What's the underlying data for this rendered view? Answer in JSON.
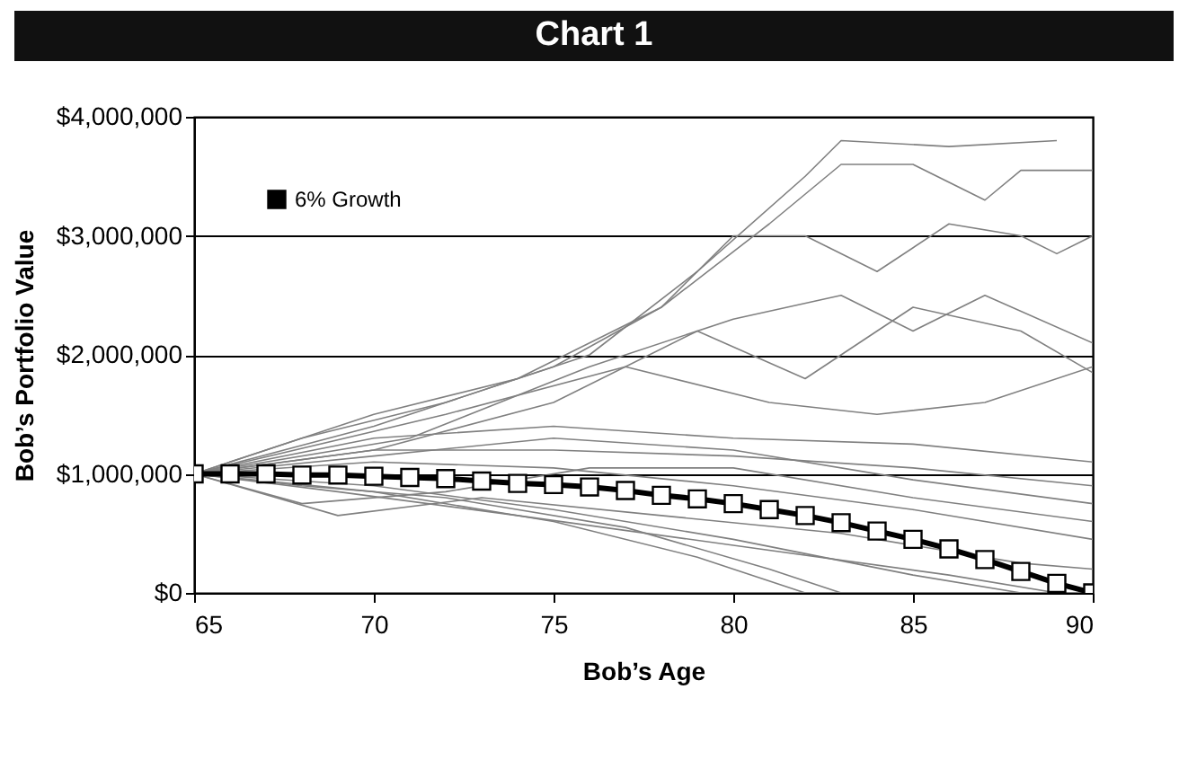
{
  "chart_data": {
    "type": "line",
    "title": "Chart 1",
    "xlabel": "Bob’s Age",
    "ylabel": "Bob’s Portfolio Value",
    "x": [
      65,
      66,
      67,
      68,
      69,
      70,
      71,
      72,
      73,
      74,
      75,
      76,
      77,
      78,
      79,
      80,
      81,
      82,
      83,
      84,
      85,
      86,
      87,
      88,
      89,
      90
    ],
    "xlim": [
      65,
      90
    ],
    "xticks": [
      65,
      70,
      75,
      80,
      85,
      90
    ],
    "ylim": [
      0,
      4000000
    ],
    "yticks": [
      {
        "value": 0,
        "label": "$0"
      },
      {
        "value": 1000000,
        "label": "$1,000,000"
      },
      {
        "value": 2000000,
        "label": "$2,000,000"
      },
      {
        "value": 3000000,
        "label": "$3,000,000"
      },
      {
        "value": 4000000,
        "label": "$4,000,000"
      }
    ],
    "grid": "y",
    "legend": "top left",
    "marker": "square",
    "series": [
      {
        "name": "6% Growth",
        "color": "#000000",
        "values": [
          1000000,
          1000000,
          1000000,
          990000,
          990000,
          980000,
          970000,
          960000,
          940000,
          920000,
          910000,
          890000,
          860000,
          820000,
          790000,
          750000,
          700000,
          650000,
          590000,
          520000,
          450000,
          370000,
          280000,
          180000,
          80000,
          0
        ]
      },
      {
        "color": "#808080",
        "marker": "none",
        "x": [
          65,
          68,
          72,
          76,
          79,
          82,
          83,
          86,
          89
        ],
        "values": [
          1000000,
          1300000,
          1600000,
          2000000,
          2700000,
          3500000,
          3800000,
          3750000,
          3800000
        ]
      },
      {
        "color": "#808080",
        "marker": "none",
        "x": [
          65,
          70,
          75,
          78,
          81,
          83,
          85,
          87,
          88,
          90
        ],
        "values": [
          1000000,
          1400000,
          1900000,
          2400000,
          3100000,
          3600000,
          3600000,
          3300000,
          3550000,
          3550000
        ]
      },
      {
        "color": "#808080",
        "marker": "none",
        "x": [
          65,
          70,
          74,
          78,
          80,
          82,
          84,
          86,
          88,
          89,
          90
        ],
        "values": [
          1000000,
          1500000,
          1800000,
          2400000,
          3000000,
          3000000,
          2700000,
          3100000,
          3000000,
          2850000,
          3000000
        ]
      },
      {
        "color": "#808080",
        "marker": "none",
        "x": [
          65,
          71,
          76,
          80,
          83,
          85,
          87,
          90
        ],
        "values": [
          1000000,
          1300000,
          1900000,
          2300000,
          2500000,
          2200000,
          2500000,
          2100000
        ]
      },
      {
        "color": "#808080",
        "marker": "none",
        "x": [
          65,
          70,
          75,
          79,
          82,
          85,
          88,
          90
        ],
        "values": [
          1000000,
          1200000,
          1600000,
          2200000,
          1800000,
          2400000,
          2200000,
          1850000
        ]
      },
      {
        "color": "#808080",
        "marker": "none",
        "x": [
          65,
          72,
          77,
          81,
          84,
          87,
          90
        ],
        "values": [
          1000000,
          1500000,
          1900000,
          1600000,
          1500000,
          1600000,
          1900000
        ]
      },
      {
        "color": "#808080",
        "marker": "none",
        "x": [
          65,
          70,
          75,
          80,
          85,
          90
        ],
        "values": [
          1000000,
          1300000,
          1400000,
          1300000,
          1250000,
          1100000
        ]
      },
      {
        "color": "#808080",
        "marker": "none",
        "x": [
          65,
          70,
          75,
          80,
          85,
          90
        ],
        "values": [
          1000000,
          1200000,
          1200000,
          1150000,
          1050000,
          900000
        ]
      },
      {
        "color": "#808080",
        "marker": "none",
        "x": [
          65,
          68,
          72,
          76,
          80,
          85,
          90
        ],
        "values": [
          1000000,
          750000,
          850000,
          1050000,
          1050000,
          800000,
          600000
        ]
      },
      {
        "color": "#808080",
        "marker": "none",
        "x": [
          65,
          69,
          73,
          78,
          83,
          88,
          90
        ],
        "values": [
          1000000,
          650000,
          800000,
          650000,
          500000,
          250000,
          200000
        ]
      },
      {
        "color": "#808080",
        "marker": "none",
        "x": [
          65,
          70,
          75,
          80,
          85,
          88
        ],
        "values": [
          1000000,
          900000,
          700000,
          450000,
          150000,
          0
        ]
      },
      {
        "color": "#808080",
        "marker": "none",
        "x": [
          65,
          70,
          75,
          79,
          82
        ],
        "values": [
          1000000,
          850000,
          600000,
          300000,
          0
        ]
      },
      {
        "color": "#808080",
        "marker": "none",
        "x": [
          65,
          69,
          74,
          80,
          86,
          89
        ],
        "values": [
          1000000,
          850000,
          650000,
          400000,
          150000,
          0
        ]
      },
      {
        "color": "#808080",
        "marker": "none",
        "x": [
          65,
          70,
          75,
          80,
          85,
          90
        ],
        "values": [
          1000000,
          1100000,
          1050000,
          900000,
          700000,
          450000
        ]
      },
      {
        "color": "#808080",
        "marker": "none",
        "x": [
          65,
          70,
          75,
          80,
          85,
          90
        ],
        "values": [
          1000000,
          1150000,
          1300000,
          1200000,
          950000,
          750000
        ]
      },
      {
        "color": "#808080",
        "marker": "none",
        "x": [
          65,
          68,
          72,
          77,
          81,
          83
        ],
        "values": [
          1000000,
          900000,
          800000,
          550000,
          200000,
          0
        ]
      }
    ]
  }
}
